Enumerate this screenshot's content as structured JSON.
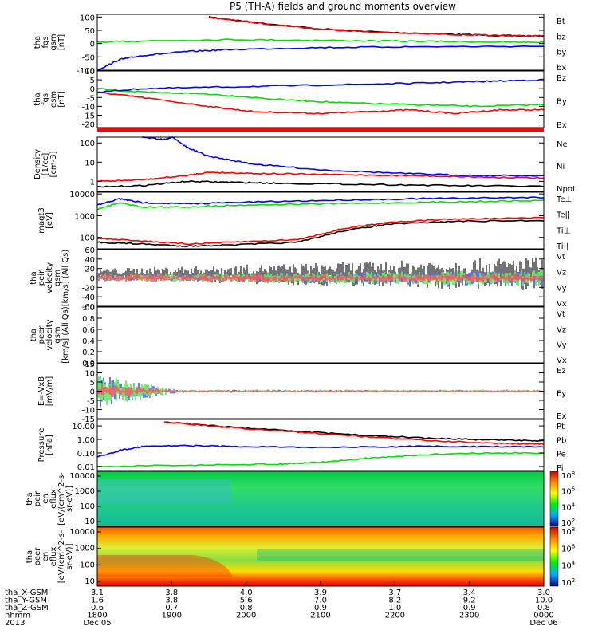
{
  "title": "P5 (TH-A) fields and ground moments overview",
  "colors": {
    "black": "#000000",
    "red": "#ff0000",
    "green": "#00e000",
    "blue": "#0000ff",
    "green2": "#00cc00"
  },
  "chart_data": [
    {
      "type": "line",
      "ylabel": "tha\nfgs\ngsm\n[nT]",
      "yticks": [
        100,
        50,
        0,
        -50,
        -100
      ],
      "ylim": [
        -100,
        110
      ],
      "legend": [
        {
          "name": "Bt",
          "color": "black"
        },
        {
          "name": "bz",
          "color": "red"
        },
        {
          "name": "by",
          "color": "green"
        },
        {
          "name": "bx",
          "color": "blue"
        }
      ],
      "series": [
        {
          "name": "Bt",
          "color": "black",
          "x": [
            0.25,
            0.35,
            0.5,
            0.65,
            0.8,
            0.9,
            1.0
          ],
          "y": [
            100,
            80,
            55,
            42,
            35,
            30,
            28
          ]
        },
        {
          "name": "bz",
          "color": "red",
          "x": [
            0.25,
            0.35,
            0.5,
            0.65,
            0.8,
            0.9,
            1.0
          ],
          "y": [
            99,
            79,
            54,
            41,
            34,
            30,
            28
          ]
        },
        {
          "name": "by",
          "color": "green",
          "x": [
            0,
            0.1,
            0.3,
            0.5,
            0.7,
            0.9,
            1.0
          ],
          "y": [
            5,
            10,
            15,
            12,
            9,
            6,
            5
          ]
        },
        {
          "name": "bx",
          "color": "blue",
          "x": [
            0,
            0.05,
            0.1,
            0.2,
            0.3,
            0.5,
            0.7,
            1.0
          ],
          "y": [
            -100,
            -60,
            -45,
            -30,
            -22,
            -15,
            -12,
            -10
          ]
        }
      ]
    },
    {
      "type": "line",
      "ylabel": "tha\nfgs\ngsm\n[nT]",
      "yticks": [
        10,
        5,
        0,
        -5,
        -10,
        -15,
        -20
      ],
      "ylim": [
        -22,
        10
      ],
      "legend": [
        {
          "name": "Bz",
          "color": "red"
        },
        {
          "name": "By",
          "color": "green"
        },
        {
          "name": "Bx",
          "color": "blue"
        }
      ],
      "series": [
        {
          "name": "Bz",
          "color": "red",
          "x": [
            0,
            0.1,
            0.25,
            0.35,
            0.5,
            0.6,
            0.7,
            0.8,
            0.9,
            1.0
          ],
          "y": [
            -2,
            -5,
            -10,
            -13,
            -14,
            -13,
            -12,
            -14,
            -12,
            -12
          ]
        },
        {
          "name": "By",
          "color": "green",
          "x": [
            0,
            0.1,
            0.25,
            0.4,
            0.55,
            0.7,
            0.85,
            1.0
          ],
          "y": [
            0,
            -2,
            -3,
            -6,
            -8,
            -9,
            -10,
            -9
          ]
        },
        {
          "name": "Bx",
          "color": "blue",
          "x": [
            0,
            0.1,
            0.3,
            0.5,
            0.7,
            0.85,
            1.0
          ],
          "y": [
            -2,
            0,
            1,
            2,
            3,
            4,
            5
          ]
        }
      ]
    },
    {
      "type": "line",
      "ylabel": "Density\n[1/cc]\n[cm-3]",
      "yticks": [
        "100",
        "10",
        "1"
      ],
      "ylim": [
        0.3,
        200
      ],
      "log": true,
      "legend": [
        {
          "name": "Ne",
          "color": "red"
        },
        {
          "name": "Ni",
          "color": "black"
        },
        {
          "name": "Npot",
          "color": "blue"
        }
      ],
      "series": [
        {
          "name": "Npot",
          "color": "blue",
          "x": [
            0.1,
            0.15,
            0.17,
            0.2,
            0.25,
            0.35,
            0.5,
            0.7,
            0.85,
            1.0
          ],
          "y": [
            200,
            150,
            200,
            60,
            20,
            8,
            4,
            2.5,
            2,
            2
          ]
        },
        {
          "name": "Ne",
          "color": "red",
          "x": [
            0,
            0.1,
            0.2,
            0.25,
            0.35,
            0.5,
            0.7,
            0.85,
            1.0
          ],
          "y": [
            1,
            1.2,
            2,
            3,
            2.6,
            2.3,
            2,
            1.7,
            1.5
          ]
        },
        {
          "name": "Ni",
          "color": "black",
          "x": [
            0,
            0.1,
            0.2,
            0.3,
            0.4,
            0.6,
            0.8,
            1.0
          ],
          "y": [
            0.5,
            0.6,
            1,
            0.9,
            0.8,
            0.7,
            0.6,
            0.55
          ]
        }
      ]
    },
    {
      "type": "line",
      "ylabel": "magt3\n[eV]",
      "yticks": [
        "10000",
        "1000",
        "100"
      ],
      "ylim": [
        30,
        12000
      ],
      "log": true,
      "legend": [
        {
          "name": "Te⊥",
          "color": "red"
        },
        {
          "name": "Te||",
          "color": "black"
        },
        {
          "name": "Ti⊥",
          "color": "blue"
        },
        {
          "name": "Ti||",
          "color": "green"
        }
      ],
      "series": [
        {
          "name": "Ti⊥",
          "color": "blue",
          "x": [
            0,
            0.05,
            0.1,
            0.2,
            0.3,
            0.5,
            0.7,
            0.85,
            1.0
          ],
          "y": [
            3000,
            6000,
            4000,
            3500,
            4000,
            5000,
            6000,
            6500,
            7000
          ]
        },
        {
          "name": "Ti||",
          "color": "green",
          "x": [
            0,
            0.05,
            0.1,
            0.2,
            0.3,
            0.5,
            0.7,
            0.85,
            1.0
          ],
          "y": [
            2000,
            4000,
            2500,
            2500,
            3000,
            3500,
            4000,
            4500,
            5000
          ]
        },
        {
          "name": "Te⊥",
          "color": "red",
          "x": [
            0,
            0.1,
            0.2,
            0.3,
            0.45,
            0.55,
            0.65,
            0.8,
            1.0
          ],
          "y": [
            90,
            70,
            50,
            60,
            80,
            250,
            500,
            700,
            800
          ]
        },
        {
          "name": "Te||",
          "color": "black",
          "x": [
            0,
            0.1,
            0.2,
            0.3,
            0.45,
            0.55,
            0.65,
            0.8,
            1.0
          ],
          "y": [
            60,
            50,
            40,
            45,
            60,
            200,
            400,
            550,
            600
          ]
        }
      ]
    },
    {
      "type": "line",
      "ylabel": "tha\npeir\nvelocity\ngsm\n[km/s] (All Qs)",
      "yticks": [
        60,
        40,
        20,
        0,
        -20,
        -40,
        -60
      ],
      "ylim": [
        -60,
        60
      ],
      "legend": [
        {
          "name": "Vt",
          "color": "black"
        },
        {
          "name": "Vz",
          "color": "red"
        },
        {
          "name": "Vy",
          "color": "green"
        },
        {
          "name": "Vx",
          "color": "blue"
        }
      ],
      "noise": true
    },
    {
      "type": "line",
      "ylabel": "tha\npeer\nvelocity\ngsm\n[km/s] (All Qs)",
      "yticks": [
        "1.0",
        "0.8",
        "0.6",
        "0.4",
        "0.2",
        "0.0"
      ],
      "ylim": [
        0,
        1
      ],
      "legend": [
        {
          "name": "Vt",
          "color": "black"
        },
        {
          "name": "Vz",
          "color": "red"
        },
        {
          "name": "Vy",
          "color": "green"
        },
        {
          "name": "Vx",
          "color": "blue"
        }
      ]
    },
    {
      "type": "line",
      "ylabel": "E=-VxB\n[mV/m]",
      "yticks": [
        15,
        10,
        5,
        0,
        -5,
        -10,
        -15
      ],
      "ylim": [
        -15,
        15
      ],
      "legend": [
        {
          "name": "Ez",
          "color": "red"
        },
        {
          "name": "Ey",
          "color": "green"
        },
        {
          "name": "Ex",
          "color": "blue"
        }
      ],
      "noise": true
    },
    {
      "type": "line",
      "ylabel": "Pressure\n[nPa]",
      "yticks": [
        "10.00",
        "1.00",
        "0.10",
        "0.01"
      ],
      "ylim": [
        0.005,
        30
      ],
      "log": true,
      "legend": [
        {
          "name": "Pt",
          "color": "black"
        },
        {
          "name": "Pb",
          "color": "red"
        },
        {
          "name": "Pe",
          "color": "green"
        },
        {
          "name": "Pi",
          "color": "blue"
        }
      ],
      "series": [
        {
          "name": "Pt",
          "color": "black",
          "x": [
            0.15,
            0.3,
            0.45,
            0.6,
            0.75,
            0.9,
            1.0
          ],
          "y": [
            20,
            8,
            4,
            2,
            1.2,
            0.9,
            0.8
          ]
        },
        {
          "name": "Pb",
          "color": "red",
          "x": [
            0.15,
            0.3,
            0.45,
            0.6,
            0.75,
            0.9,
            1.0
          ],
          "y": [
            19,
            7.5,
            3.5,
            1.6,
            0.8,
            0.5,
            0.45
          ]
        },
        {
          "name": "Pi",
          "color": "blue",
          "x": [
            0,
            0.05,
            0.1,
            0.2,
            0.3,
            0.5,
            0.7,
            0.85,
            1.0
          ],
          "y": [
            0.05,
            0.15,
            0.3,
            0.35,
            0.3,
            0.25,
            0.3,
            0.3,
            0.3
          ]
        },
        {
          "name": "Pe",
          "color": "green",
          "x": [
            0,
            0.2,
            0.4,
            0.5,
            0.6,
            0.75,
            0.9,
            1.0
          ],
          "y": [
            0.01,
            0.012,
            0.015,
            0.02,
            0.04,
            0.08,
            0.1,
            0.1
          ]
        }
      ]
    },
    {
      "type": "heatmap",
      "ylabel": "tha\npeir\nen\neflux\n[eV/(cm^2-s-\nsr-eV)]",
      "yticks": [
        "10000",
        "1000",
        "100",
        "10"
      ],
      "colorbar": [
        "10^8",
        "10^6",
        "10^4",
        "10^2"
      ]
    },
    {
      "type": "heatmap",
      "ylabel": "tha\npeer\nen\neflux\n[eV/(cm^2-s-\nsr-eV)]",
      "yticks": [
        "10000",
        "1000",
        "100",
        "10"
      ],
      "colorbar": [
        "10^8",
        "10^6",
        "10^4",
        "10^2"
      ]
    }
  ],
  "xaxis": {
    "rows": [
      {
        "label": "tha_X-GSM",
        "values": [
          "3.1",
          "3.8",
          "4.0",
          "3.9",
          "3.7",
          "3.4",
          "3.0"
        ]
      },
      {
        "label": "tha_Y-GSM",
        "values": [
          "1.6",
          "3.8",
          "5.6",
          "7.0",
          "8.2",
          "9.2",
          "10.0"
        ]
      },
      {
        "label": "tha_Z-GSM",
        "values": [
          "0.6",
          "0.7",
          "0.8",
          "0.9",
          "1.0",
          "0.9",
          "0.8"
        ]
      },
      {
        "label": "hhmm",
        "values": [
          "1800",
          "1900",
          "2000",
          "2100",
          "2200",
          "2300",
          "0000"
        ]
      },
      {
        "label": "2013",
        "values": [
          "Dec 05",
          "",
          "",
          "",
          "",
          "",
          "Dec 06"
        ]
      }
    ]
  }
}
